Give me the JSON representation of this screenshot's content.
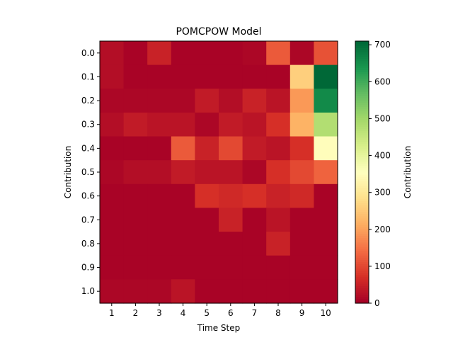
{
  "chart_data": {
    "type": "heatmap",
    "title": "POMCPOW Model",
    "xlabel": "Time Step",
    "ylabel": "Contribution",
    "colorbar_label": "Contribution",
    "colormap": "RdYlGn",
    "x_categories": [
      "1",
      "2",
      "3",
      "4",
      "5",
      "6",
      "7",
      "8",
      "9",
      "10"
    ],
    "y_categories": [
      "0.0",
      "0.1",
      "0.2",
      "0.3",
      "0.4",
      "0.5",
      "0.6",
      "0.7",
      "0.8",
      "0.9",
      "1.0"
    ],
    "values": [
      [
        20,
        5,
        50,
        5,
        5,
        5,
        10,
        120,
        10,
        110
      ],
      [
        20,
        5,
        5,
        5,
        5,
        5,
        5,
        5,
        260,
        710
      ],
      [
        10,
        10,
        10,
        10,
        40,
        20,
        50,
        30,
        190,
        660
      ],
      [
        20,
        40,
        30,
        30,
        10,
        40,
        30,
        70,
        220,
        480
      ],
      [
        5,
        5,
        5,
        120,
        50,
        100,
        40,
        30,
        70,
        350
      ],
      [
        10,
        20,
        20,
        40,
        30,
        30,
        10,
        70,
        100,
        130
      ],
      [
        5,
        5,
        5,
        5,
        70,
        60,
        70,
        50,
        60,
        5
      ],
      [
        5,
        5,
        5,
        5,
        5,
        50,
        5,
        30,
        5,
        5
      ],
      [
        5,
        5,
        5,
        5,
        5,
        5,
        5,
        50,
        5,
        5
      ],
      [
        5,
        5,
        5,
        5,
        5,
        5,
        5,
        5,
        5,
        5
      ],
      [
        10,
        10,
        10,
        30,
        5,
        5,
        5,
        5,
        5,
        5
      ]
    ],
    "vmin": 0,
    "vmax": 710,
    "colorbar_ticks": [
      0,
      100,
      200,
      300,
      400,
      500,
      600,
      700
    ]
  }
}
